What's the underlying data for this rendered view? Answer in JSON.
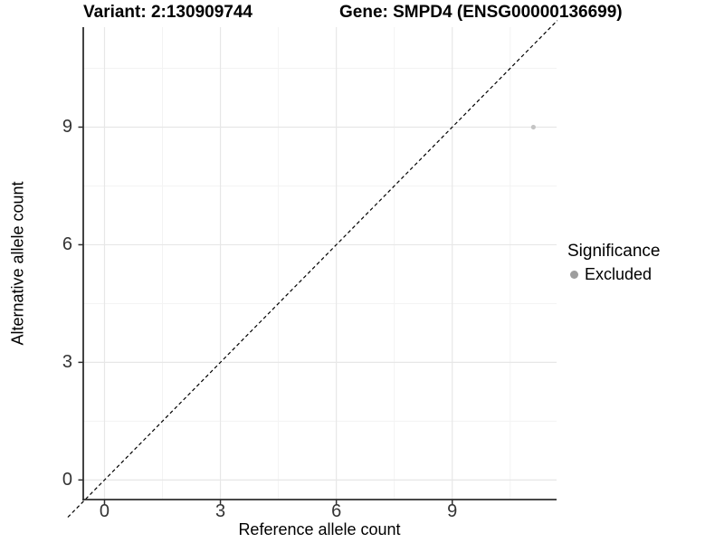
{
  "header": {
    "title_left": "Variant: 2:130909744",
    "title_right": "Gene: SMPD4 (ENSG00000136699)"
  },
  "chart_data": {
    "type": "scatter",
    "xlabel": "Reference allele count",
    "ylabel": "Alternative allele count",
    "x_ticks": [
      0,
      3,
      6,
      9
    ],
    "y_ticks": [
      0,
      3,
      6,
      9
    ],
    "xlim": [
      -0.55,
      11.7
    ],
    "ylim": [
      -0.5,
      11.55
    ],
    "minor_step": 1.5,
    "grid": "major+minor",
    "points": [
      {
        "x": 11.1,
        "y": 9,
        "series": "Excluded"
      }
    ],
    "identity_line": {
      "slope": 1,
      "intercept": 0,
      "style": "dashed"
    },
    "legend": {
      "title": "Significance",
      "position": "right",
      "items": [
        {
          "label": "Excluded",
          "color": "#9d9d9d"
        }
      ]
    }
  },
  "colors": {
    "background": "#ffffff",
    "title": "#000000",
    "tick_label": "#333333",
    "axis_line": "#2e2e2e",
    "grid_major": "#e7e7e7",
    "grid_minor": "#f3f3f3",
    "dashed_line": "#000000",
    "point": "#c4c4c4"
  }
}
